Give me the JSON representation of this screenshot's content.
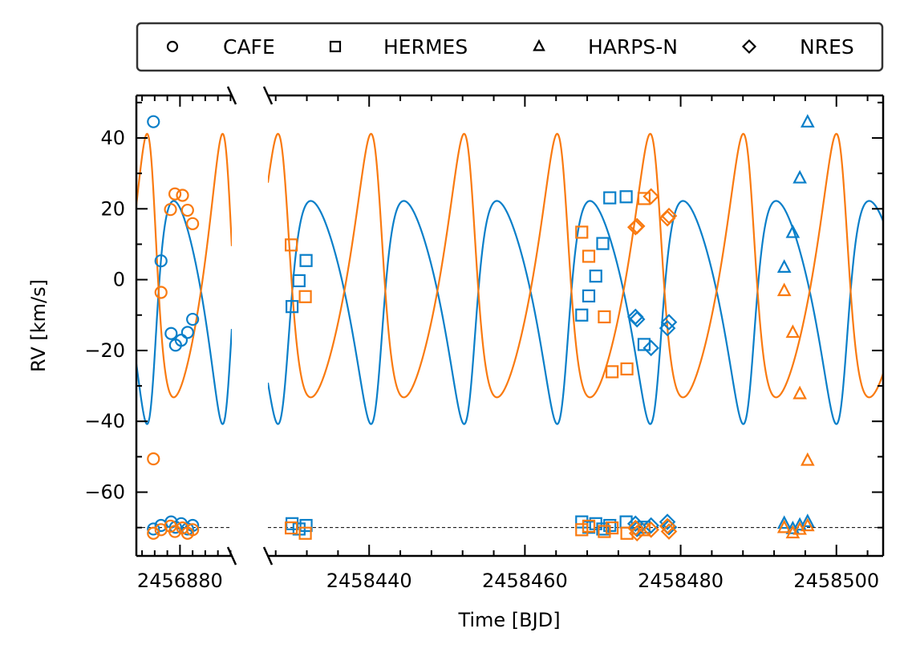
{
  "chart_data": {
    "type": "scatter",
    "xlabel": "Time [BJD]",
    "ylabel": "RV [km/s]",
    "ylim": [
      -78,
      52
    ],
    "y_ticks": [
      40,
      20,
      0,
      -20,
      -40,
      -60
    ],
    "y_tick_labels": [
      "40",
      "20",
      "0",
      "−20",
      "−40",
      "−60"
    ],
    "legend": {
      "placement": "above plot",
      "entries": [
        {
          "label": "CAFE",
          "marker": "circle"
        },
        {
          "label": "HERMES",
          "marker": "square"
        },
        {
          "label": "HARPS-N",
          "marker": "triangle"
        },
        {
          "label": "NRES",
          "marker": "diamond"
        }
      ]
    },
    "colors": {
      "primary": "#0a7fc9",
      "secondary": "#f97a10"
    },
    "baseline_rv": -70,
    "orbit": {
      "period": 11.95,
      "K1": 31.5,
      "K2": 37.2,
      "e": 0.3,
      "omega_deg": 230,
      "gamma": -3.2,
      "t_peri": 2456875.7
    },
    "panels": [
      {
        "xlim": [
          2456873.1,
          2456888.2
        ],
        "x_ticks": [
          2456880
        ],
        "x_tick_labels": [
          "2456880"
        ],
        "series": [
          {
            "instrument": "CAFE",
            "component": "primary",
            "marker": "circle",
            "points": [
              [
                2456875.8,
                44.6
              ],
              [
                2456877.0,
                5.3
              ],
              [
                2456878.6,
                -15.2
              ],
              [
                2456879.3,
                -18.5
              ],
              [
                2456880.2,
                -17.1
              ],
              [
                2456881.2,
                -14.9
              ],
              [
                2456882.0,
                -11.2
              ]
            ]
          },
          {
            "instrument": "CAFE",
            "component": "secondary",
            "marker": "circle",
            "points": [
              [
                2456875.8,
                -50.6
              ],
              [
                2456877.0,
                -3.6
              ],
              [
                2456878.5,
                19.8
              ],
              [
                2456879.2,
                24.2
              ],
              [
                2456880.4,
                23.8
              ],
              [
                2456881.2,
                19.6
              ],
              [
                2456882.0,
                15.8
              ]
            ]
          }
        ]
      },
      {
        "xlim": [
          2458427.0,
          2458506.0
        ],
        "x_ticks": [
          2458440,
          2458460,
          2458480,
          2458500
        ],
        "x_tick_labels": [
          "2458440",
          "2458460",
          "2458480",
          "2458500"
        ],
        "series": [
          {
            "instrument": "HERMES",
            "component": "primary",
            "marker": "square",
            "points": [
              [
                2458430.1,
                -7.6
              ],
              [
                2458431.0,
                -0.3
              ],
              [
                2458431.9,
                5.4
              ],
              [
                2458467.3,
                -10.0
              ],
              [
                2458468.2,
                -4.6
              ],
              [
                2458469.1,
                1.0
              ],
              [
                2458470.0,
                10.2
              ],
              [
                2458470.9,
                23.1
              ],
              [
                2458473.0,
                23.4
              ],
              [
                2458475.3,
                -18.3
              ]
            ]
          },
          {
            "instrument": "HERMES",
            "component": "secondary",
            "marker": "square",
            "points": [
              [
                2458430.0,
                9.8
              ],
              [
                2458431.8,
                -4.8
              ],
              [
                2458467.3,
                13.4
              ],
              [
                2458468.2,
                6.6
              ],
              [
                2458470.2,
                -10.5
              ],
              [
                2458471.2,
                -26.0
              ],
              [
                2458473.1,
                -25.2
              ],
              [
                2458475.3,
                22.9
              ]
            ]
          },
          {
            "instrument": "HARPS-N",
            "component": "primary",
            "marker": "triangle",
            "points": [
              [
                2458493.3,
                3.4
              ],
              [
                2458494.4,
                13.2
              ],
              [
                2458495.3,
                28.6
              ],
              [
                2458496.3,
                44.4
              ]
            ]
          },
          {
            "instrument": "HARPS-N",
            "component": "secondary",
            "marker": "triangle",
            "points": [
              [
                2458493.3,
                -3.2
              ],
              [
                2458494.4,
                -15.0
              ],
              [
                2458495.3,
                -32.3
              ],
              [
                2458496.3,
                -51.1
              ]
            ]
          },
          {
            "instrument": "NRES",
            "component": "primary",
            "marker": "diamond",
            "points": [
              [
                2458474.2,
                -10.5
              ],
              [
                2458474.4,
                -11.2
              ],
              [
                2458476.2,
                -19.3
              ],
              [
                2458478.3,
                -13.7
              ],
              [
                2458478.5,
                -12.0
              ]
            ]
          },
          {
            "instrument": "NRES",
            "component": "secondary",
            "marker": "diamond",
            "points": [
              [
                2458474.2,
                14.8
              ],
              [
                2458474.4,
                15.1
              ],
              [
                2458476.2,
                23.5
              ],
              [
                2458478.3,
                17.3
              ],
              [
                2458478.5,
                18.0
              ]
            ]
          }
        ]
      }
    ]
  }
}
